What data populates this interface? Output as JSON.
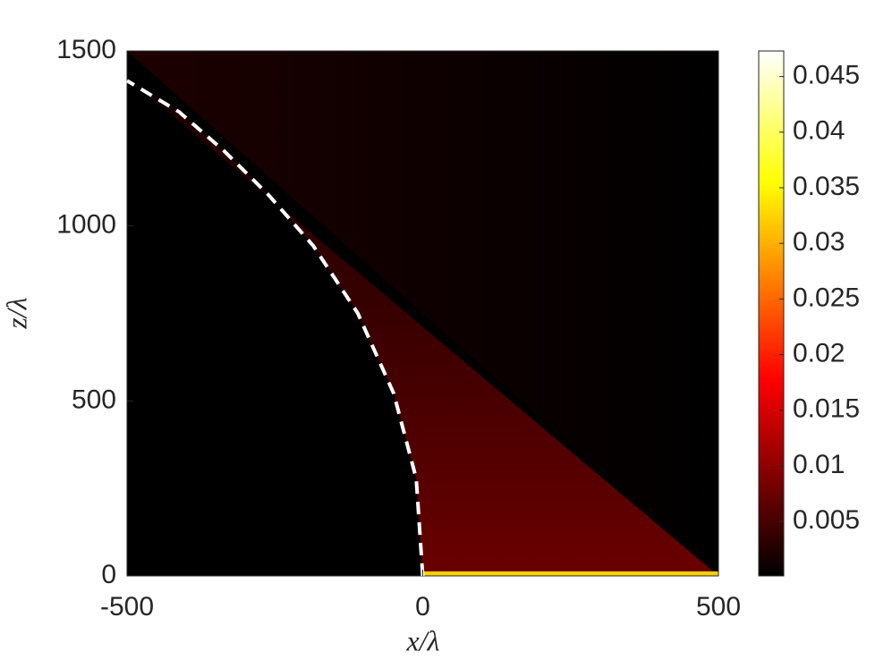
{
  "chart_data": {
    "type": "heatmap",
    "colormap": "hot",
    "xlabel": "x/λ",
    "ylabel": "z/λ",
    "xlim": [
      -500,
      500
    ],
    "ylim": [
      0,
      1500
    ],
    "xticks": [
      -500,
      0,
      500
    ],
    "yticks": [
      0,
      500,
      1000,
      1500
    ],
    "clim": [
      0.0001,
      0.0473
    ],
    "cticks": [
      0.005,
      0.01,
      0.015,
      0.02,
      0.025,
      0.03,
      0.035,
      0.04,
      0.045
    ],
    "series": [
      {
        "color": "#ffffff",
        "line_style": "dashed",
        "x": [
          0,
          -11,
          -49,
          -110,
          -185,
          -261,
          -337,
          -412,
          -500
        ],
        "values": [
          0,
          278,
          521,
          751,
          943,
          1089,
          1216,
          1326,
          1415
        ]
      }
    ]
  }
}
